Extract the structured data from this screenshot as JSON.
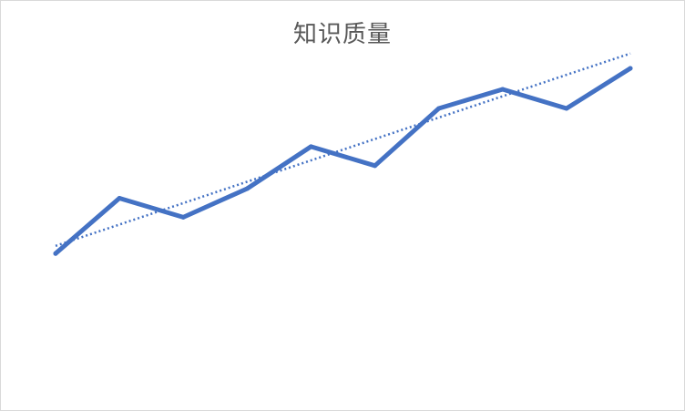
{
  "chart_data": {
    "type": "line",
    "title": "知识质量",
    "xlabel": "",
    "ylabel": "",
    "grid": false,
    "legend": "none",
    "x": [
      1,
      2,
      3,
      4,
      5,
      6,
      7,
      8,
      9,
      10
    ],
    "ylim": [
      0,
      10
    ],
    "series": [
      {
        "name": "知识质量",
        "values": [
          4.1,
          5.55,
          5.05,
          5.8,
          6.9,
          6.4,
          7.9,
          8.4,
          7.9,
          8.95
        ],
        "color": "#4472c4",
        "style": "solid"
      },
      {
        "name": "trendline",
        "values": [
          4.3,
          4.86,
          5.42,
          5.98,
          6.54,
          7.1,
          7.66,
          8.22,
          8.78,
          9.34
        ],
        "color": "#4472c4",
        "style": "dotted"
      }
    ]
  }
}
